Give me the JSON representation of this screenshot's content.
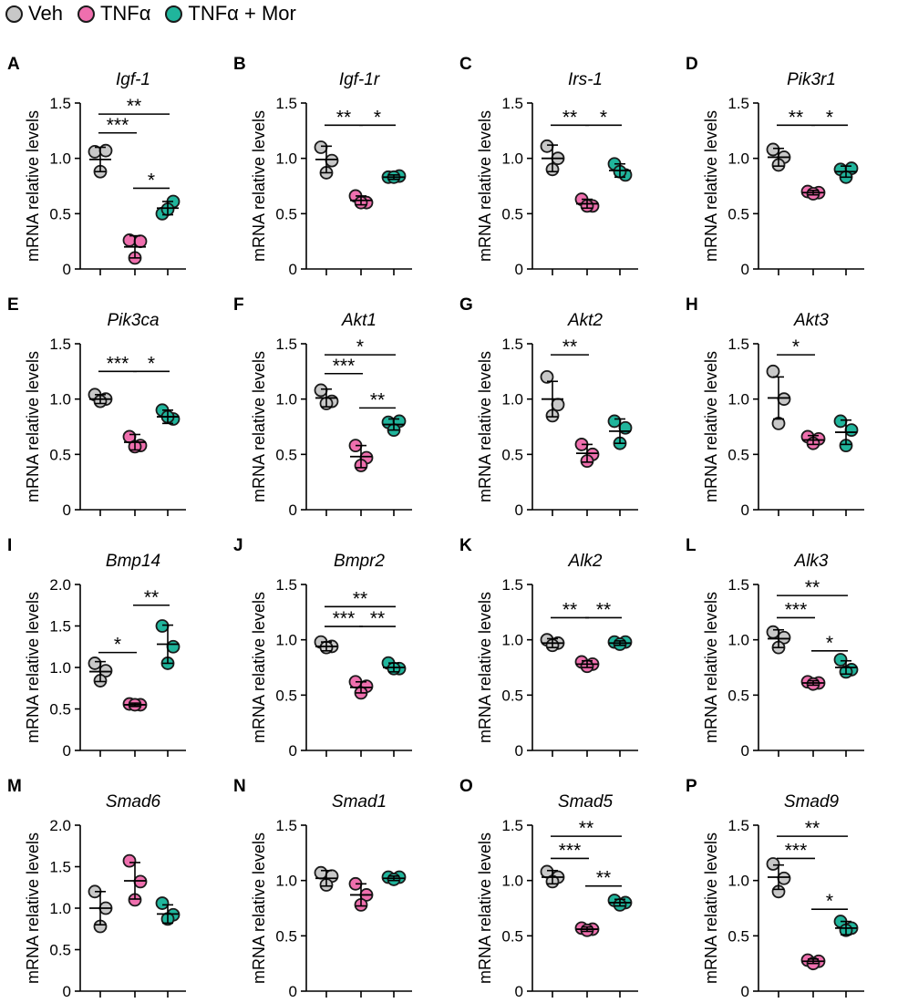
{
  "legend": [
    {
      "label": "Veh",
      "color": "#c8c8c8"
    },
    {
      "label": "TNFα",
      "color": "#ef6fae"
    },
    {
      "label": "TNFα + Mor",
      "color": "#20b59c"
    }
  ],
  "chart_data": [
    {
      "type": "scatter",
      "letter": "A",
      "title": "Igf-1",
      "ylabel": "mRNA relative levels",
      "ylim": [
        0,
        1.5
      ],
      "yticks": [
        "0",
        "0.5",
        "1.0",
        "1.5"
      ],
      "groups": [
        {
          "name": "Veh",
          "mean": 0.99,
          "sd": 0.11,
          "points": [
            1.06,
            1.07,
            0.88
          ]
        },
        {
          "name": "TNFα",
          "mean": 0.2,
          "sd": 0.1,
          "points": [
            0.26,
            0.25,
            0.1
          ]
        },
        {
          "name": "TNFα + Mor",
          "mean": 0.55,
          "sd": 0.06,
          "points": [
            0.5,
            0.61,
            0.54
          ]
        }
      ],
      "sig": [
        {
          "from": 0,
          "to": 2,
          "label": "**",
          "level": 1.4
        },
        {
          "from": 0,
          "to": 1,
          "label": "***",
          "level": 1.23
        },
        {
          "from": 1,
          "to": 2,
          "label": "*",
          "level": 0.73
        }
      ]
    },
    {
      "type": "scatter",
      "letter": "B",
      "title": "Igf-1r",
      "ylabel": "mRNA relative levels",
      "ylim": [
        0,
        1.5
      ],
      "yticks": [
        "0",
        "0.5",
        "1.0",
        "1.5"
      ],
      "groups": [
        {
          "name": "Veh",
          "mean": 0.99,
          "sd": 0.12,
          "points": [
            1.1,
            0.98,
            0.87
          ]
        },
        {
          "name": "TNFα",
          "mean": 0.62,
          "sd": 0.04,
          "points": [
            0.66,
            0.6,
            0.6
          ]
        },
        {
          "name": "TNFα + Mor",
          "mean": 0.83,
          "sd": 0.02,
          "points": [
            0.83,
            0.84,
            0.83
          ]
        }
      ],
      "sig": [
        {
          "from": 0,
          "to": 1,
          "label": "**",
          "level": 1.3
        },
        {
          "from": 1,
          "to": 2,
          "label": "*",
          "level": 1.3
        }
      ]
    },
    {
      "type": "scatter",
      "letter": "C",
      "title": "Irs-1",
      "ylabel": "mRNA relative levels",
      "ylim": [
        0,
        1.5
      ],
      "yticks": [
        "0",
        "0.5",
        "1.0",
        "1.5"
      ],
      "groups": [
        {
          "name": "Veh",
          "mean": 1.0,
          "sd": 0.12,
          "points": [
            1.11,
            1.0,
            0.9
          ]
        },
        {
          "name": "TNFα",
          "mean": 0.59,
          "sd": 0.04,
          "points": [
            0.63,
            0.57,
            0.57
          ]
        },
        {
          "name": "TNFα + Mor",
          "mean": 0.89,
          "sd": 0.06,
          "points": [
            0.95,
            0.85,
            0.88
          ]
        }
      ],
      "sig": [
        {
          "from": 0,
          "to": 1,
          "label": "**",
          "level": 1.3
        },
        {
          "from": 1,
          "to": 2,
          "label": "*",
          "level": 1.3
        }
      ]
    },
    {
      "type": "scatter",
      "letter": "D",
      "title": "Pik3r1",
      "ylabel": "mRNA relative levels",
      "ylim": [
        0,
        1.5
      ],
      "yticks": [
        "0",
        "0.5",
        "1.0",
        "1.5"
      ],
      "groups": [
        {
          "name": "Veh",
          "mean": 1.01,
          "sd": 0.08,
          "points": [
            1.08,
            1.01,
            0.94
          ]
        },
        {
          "name": "TNFα",
          "mean": 0.69,
          "sd": 0.02,
          "points": [
            0.7,
            0.69,
            0.68
          ]
        },
        {
          "name": "TNFα + Mor",
          "mean": 0.88,
          "sd": 0.05,
          "points": [
            0.9,
            0.91,
            0.83
          ]
        }
      ],
      "sig": [
        {
          "from": 0,
          "to": 1,
          "label": "**",
          "level": 1.3
        },
        {
          "from": 1,
          "to": 2,
          "label": "*",
          "level": 1.3
        }
      ]
    },
    {
      "type": "scatter",
      "letter": "E",
      "title": "Pik3ca",
      "ylabel": "mRNA relative levels",
      "ylim": [
        0,
        1.5
      ],
      "yticks": [
        "0",
        "0.5",
        "1.0",
        "1.5"
      ],
      "groups": [
        {
          "name": "Veh",
          "mean": 1.0,
          "sd": 0.04,
          "points": [
            1.04,
            1.0,
            0.98
          ]
        },
        {
          "name": "TNFα",
          "mean": 0.61,
          "sd": 0.07,
          "points": [
            0.66,
            0.58,
            0.57
          ]
        },
        {
          "name": "TNFα + Mor",
          "mean": 0.84,
          "sd": 0.06,
          "points": [
            0.9,
            0.82,
            0.84
          ]
        }
      ],
      "sig": [
        {
          "from": 0,
          "to": 1,
          "label": "***",
          "level": 1.25
        },
        {
          "from": 1,
          "to": 2,
          "label": "*",
          "level": 1.25
        }
      ]
    },
    {
      "type": "scatter",
      "letter": "F",
      "title": "Akt1",
      "ylabel": "mRNA relative levels",
      "ylim": [
        0,
        1.5
      ],
      "yticks": [
        "0",
        "0.5",
        "1.0",
        "1.5"
      ],
      "groups": [
        {
          "name": "Veh",
          "mean": 1.01,
          "sd": 0.08,
          "points": [
            1.08,
            0.98,
            0.96
          ]
        },
        {
          "name": "TNFα",
          "mean": 0.48,
          "sd": 0.1,
          "points": [
            0.58,
            0.47,
            0.4
          ]
        },
        {
          "name": "TNFα + Mor",
          "mean": 0.77,
          "sd": 0.05,
          "points": [
            0.79,
            0.8,
            0.72
          ]
        }
      ],
      "sig": [
        {
          "from": 0,
          "to": 2,
          "label": "*",
          "level": 1.4
        },
        {
          "from": 0,
          "to": 1,
          "label": "***",
          "level": 1.23
        },
        {
          "from": 1,
          "to": 2,
          "label": "**",
          "level": 0.92
        }
      ]
    },
    {
      "type": "scatter",
      "letter": "G",
      "title": "Akt2",
      "ylabel": "mRNA relative levels",
      "ylim": [
        0,
        1.5
      ],
      "yticks": [
        "0",
        "0.5",
        "1.0",
        "1.5"
      ],
      "groups": [
        {
          "name": "Veh",
          "mean": 1.0,
          "sd": 0.16,
          "points": [
            1.2,
            0.95,
            0.85
          ]
        },
        {
          "name": "TNFα",
          "mean": 0.51,
          "sd": 0.08,
          "points": [
            0.59,
            0.5,
            0.44
          ]
        },
        {
          "name": "TNFα + Mor",
          "mean": 0.71,
          "sd": 0.11,
          "points": [
            0.8,
            0.74,
            0.6
          ]
        }
      ],
      "sig": [
        {
          "from": 0,
          "to": 1,
          "label": "**",
          "level": 1.4
        }
      ]
    },
    {
      "type": "scatter",
      "letter": "H",
      "title": "Akt3",
      "ylabel": "mRNA relative levels",
      "ylim": [
        0,
        1.5
      ],
      "yticks": [
        "0",
        "0.5",
        "1.0",
        "1.5"
      ],
      "groups": [
        {
          "name": "Veh",
          "mean": 1.01,
          "sd": 0.19,
          "points": [
            1.25,
            1.0,
            0.78
          ]
        },
        {
          "name": "TNFα",
          "mean": 0.63,
          "sd": 0.04,
          "points": [
            0.66,
            0.64,
            0.6
          ]
        },
        {
          "name": "TNFα + Mor",
          "mean": 0.7,
          "sd": 0.11,
          "points": [
            0.8,
            0.72,
            0.58
          ]
        }
      ],
      "sig": [
        {
          "from": 0,
          "to": 1,
          "label": "*",
          "level": 1.4
        }
      ]
    },
    {
      "type": "scatter",
      "letter": "I",
      "title": "Bmp14",
      "ylabel": "mRNA relative levels",
      "ylim": [
        0,
        2.0
      ],
      "yticks": [
        "0",
        "0.5",
        "1.0",
        "1.5",
        "2.0"
      ],
      "groups": [
        {
          "name": "Veh",
          "mean": 0.95,
          "sd": 0.12,
          "points": [
            1.05,
            0.96,
            0.84
          ]
        },
        {
          "name": "TNFα",
          "mean": 0.55,
          "sd": 0.02,
          "points": [
            0.56,
            0.55,
            0.55
          ]
        },
        {
          "name": "TNFα + Mor",
          "mean": 1.28,
          "sd": 0.23,
          "points": [
            1.5,
            1.25,
            1.05
          ]
        }
      ],
      "sig": [
        {
          "from": 0,
          "to": 1,
          "label": "*",
          "level": 1.18
        },
        {
          "from": 1,
          "to": 2,
          "label": "**",
          "level": 1.75
        }
      ]
    },
    {
      "type": "scatter",
      "letter": "J",
      "title": "Bmpr2",
      "ylabel": "mRNA relative levels",
      "ylim": [
        0,
        1.5
      ],
      "yticks": [
        "0",
        "0.5",
        "1.0",
        "1.5"
      ],
      "groups": [
        {
          "name": "Veh",
          "mean": 0.94,
          "sd": 0.04,
          "points": [
            0.98,
            0.94,
            0.93
          ]
        },
        {
          "name": "TNFα",
          "mean": 0.57,
          "sd": 0.05,
          "points": [
            0.62,
            0.58,
            0.52
          ]
        },
        {
          "name": "TNFα + Mor",
          "mean": 0.75,
          "sd": 0.04,
          "points": [
            0.79,
            0.74,
            0.74
          ]
        }
      ],
      "sig": [
        {
          "from": 0,
          "to": 2,
          "label": "**",
          "level": 1.3
        },
        {
          "from": 0,
          "to": 1,
          "label": "***",
          "level": 1.12
        },
        {
          "from": 1,
          "to": 2,
          "label": "**",
          "level": 1.12
        }
      ]
    },
    {
      "type": "scatter",
      "letter": "K",
      "title": "Alk2",
      "ylabel": "mRNA relative levels",
      "ylim": [
        0,
        1.5
      ],
      "yticks": [
        "0",
        "0.5",
        "1.0",
        "1.5"
      ],
      "groups": [
        {
          "name": "Veh",
          "mean": 0.97,
          "sd": 0.04,
          "points": [
            1.0,
            0.97,
            0.95
          ]
        },
        {
          "name": "TNFα",
          "mean": 0.78,
          "sd": 0.03,
          "points": [
            0.8,
            0.78,
            0.76
          ]
        },
        {
          "name": "TNFα + Mor",
          "mean": 0.97,
          "sd": 0.02,
          "points": [
            0.98,
            0.98,
            0.96
          ]
        }
      ],
      "sig": [
        {
          "from": 0,
          "to": 1,
          "label": "**",
          "level": 1.2
        },
        {
          "from": 1,
          "to": 2,
          "label": "**",
          "level": 1.2
        }
      ]
    },
    {
      "type": "scatter",
      "letter": "L",
      "title": "Alk3",
      "ylabel": "mRNA relative levels",
      "ylim": [
        0,
        1.5
      ],
      "yticks": [
        "0",
        "0.5",
        "1.0",
        "1.5"
      ],
      "groups": [
        {
          "name": "Veh",
          "mean": 1.01,
          "sd": 0.08,
          "points": [
            1.07,
            1.02,
            0.93
          ]
        },
        {
          "name": "TNFα",
          "mean": 0.61,
          "sd": 0.02,
          "points": [
            0.62,
            0.61,
            0.6
          ]
        },
        {
          "name": "TNFα + Mor",
          "mean": 0.75,
          "sd": 0.06,
          "points": [
            0.82,
            0.73,
            0.71
          ]
        }
      ],
      "sig": [
        {
          "from": 0,
          "to": 2,
          "label": "**",
          "level": 1.4
        },
        {
          "from": 0,
          "to": 1,
          "label": "***",
          "level": 1.2
        },
        {
          "from": 1,
          "to": 2,
          "label": "*",
          "level": 0.9
        }
      ]
    },
    {
      "type": "scatter",
      "letter": "M",
      "title": "Smad6",
      "ylabel": "mRNA relative levels",
      "ylim": [
        0,
        2.0
      ],
      "yticks": [
        "0",
        "0.5",
        "1.0",
        "1.5",
        "2.0"
      ],
      "groups": [
        {
          "name": "Veh",
          "mean": 1.0,
          "sd": 0.2,
          "points": [
            1.2,
            1.0,
            0.78
          ]
        },
        {
          "name": "TNFα",
          "mean": 1.33,
          "sd": 0.22,
          "points": [
            1.57,
            1.32,
            1.1
          ]
        },
        {
          "name": "TNFα + Mor",
          "mean": 0.93,
          "sd": 0.11,
          "points": [
            1.06,
            0.92,
            0.87
          ]
        }
      ],
      "sig": []
    },
    {
      "type": "scatter",
      "letter": "N",
      "title": "Smad1",
      "ylabel": "mRNA relative levels",
      "ylim": [
        0,
        1.5
      ],
      "yticks": [
        "0",
        "0.5",
        "1.0",
        "1.5"
      ],
      "groups": [
        {
          "name": "Veh",
          "mean": 1.02,
          "sd": 0.07,
          "points": [
            1.07,
            1.04,
            0.96
          ]
        },
        {
          "name": "TNFα",
          "mean": 0.87,
          "sd": 0.1,
          "points": [
            0.97,
            0.87,
            0.78
          ]
        },
        {
          "name": "TNFα + Mor",
          "mean": 1.02,
          "sd": 0.02,
          "points": [
            1.03,
            1.03,
            1.01
          ]
        }
      ],
      "sig": []
    },
    {
      "type": "scatter",
      "letter": "O",
      "title": "Smad5",
      "ylabel": "mRNA relative levels",
      "ylim": [
        0,
        1.5
      ],
      "yticks": [
        "0",
        "0.5",
        "1.0",
        "1.5"
      ],
      "groups": [
        {
          "name": "Veh",
          "mean": 1.03,
          "sd": 0.06,
          "points": [
            1.08,
            1.03,
            0.99
          ]
        },
        {
          "name": "TNFα",
          "mean": 0.56,
          "sd": 0.02,
          "points": [
            0.57,
            0.56,
            0.55
          ]
        },
        {
          "name": "TNFα + Mor",
          "mean": 0.8,
          "sd": 0.03,
          "points": [
            0.82,
            0.8,
            0.78
          ]
        }
      ],
      "sig": [
        {
          "from": 0,
          "to": 2,
          "label": "**",
          "level": 1.4
        },
        {
          "from": 0,
          "to": 1,
          "label": "***",
          "level": 1.2
        },
        {
          "from": 1,
          "to": 2,
          "label": "**",
          "level": 0.95
        }
      ]
    },
    {
      "type": "scatter",
      "letter": "P",
      "title": "Smad9",
      "ylabel": "mRNA relative levels",
      "ylim": [
        0,
        1.5
      ],
      "yticks": [
        "0",
        "0.5",
        "1.0",
        "1.5"
      ],
      "groups": [
        {
          "name": "Veh",
          "mean": 1.03,
          "sd": 0.11,
          "points": [
            1.15,
            1.02,
            0.9
          ]
        },
        {
          "name": "TNFα",
          "mean": 0.27,
          "sd": 0.02,
          "points": [
            0.28,
            0.27,
            0.25
          ]
        },
        {
          "name": "TNFα + Mor",
          "mean": 0.57,
          "sd": 0.06,
          "points": [
            0.63,
            0.57,
            0.55
          ]
        }
      ],
      "sig": [
        {
          "from": 0,
          "to": 2,
          "label": "**",
          "level": 1.4
        },
        {
          "from": 0,
          "to": 1,
          "label": "***",
          "level": 1.2
        },
        {
          "from": 1,
          "to": 2,
          "label": "*",
          "level": 0.74
        }
      ]
    }
  ]
}
